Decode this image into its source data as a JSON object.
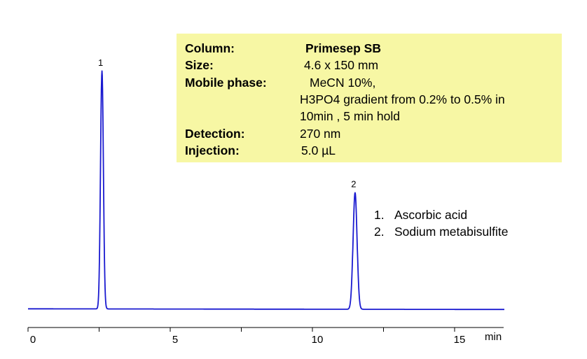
{
  "info": {
    "rows": [
      {
        "key": "Column:",
        "value": "Primesep SB",
        "bold": true
      },
      {
        "key": "Size:",
        "value": "4.6 x 150 mm"
      },
      {
        "key": "Mobile phase:",
        "value": "MeCN  10%,"
      },
      {
        "key": "",
        "value": "H3PO4 gradient from 0.2% to 0.5% in"
      },
      {
        "key": "",
        "value": "10min , 5 min hold"
      },
      {
        "key": "Detection:",
        "value": "270 nm"
      },
      {
        "key": "Injection:",
        "value": "5.0 µL"
      }
    ]
  },
  "legend": [
    {
      "num": "1.",
      "label": "Ascorbic acid"
    },
    {
      "num": "2.",
      "label": "Sodium metabisulfite"
    }
  ],
  "colors": {
    "trace": "#1a1ad0",
    "panel": "#f7f7a4",
    "axis": "#000000"
  },
  "chart_data": {
    "type": "line",
    "title": "",
    "xlabel": "min",
    "ylabel": "",
    "xlim": [
      0,
      17
    ],
    "x_ticks": [
      0,
      5,
      10,
      15
    ],
    "x_tick_labels": [
      "0",
      "5",
      "10",
      "15"
    ],
    "grid": false,
    "baseline": 0.005,
    "peaks": [
      {
        "label": "1",
        "name": "Ascorbic acid",
        "retention_time": 2.6,
        "height": 1.0,
        "width": 0.05
      },
      {
        "label": "2",
        "name": "Sodium metabisulfite",
        "retention_time": 11.5,
        "height": 0.49,
        "width": 0.07
      }
    ]
  }
}
